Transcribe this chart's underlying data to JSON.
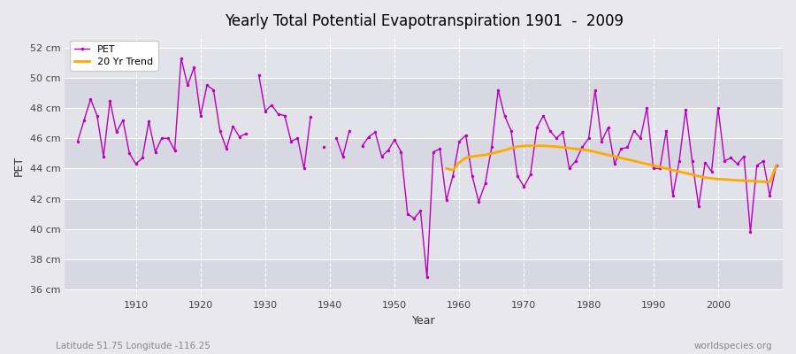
{
  "title": "Yearly Total Potential Evapotranspiration 1901  -  2009",
  "xlabel": "Year",
  "ylabel": "PET",
  "footnote_left": "Latitude 51.75 Longitude -116.25",
  "footnote_right": "worldspecies.org",
  "pet_color": "#bb00bb",
  "trend_color": "#ffaa00",
  "background_color": "#e8e8ee",
  "band_light": "#e0e0e8",
  "band_dark": "#d0d0dc",
  "grid_color": "#ffffff",
  "ylim": [
    35.5,
    52.8
  ],
  "yticks": [
    36,
    38,
    40,
    42,
    44,
    46,
    48,
    50,
    52
  ],
  "ytick_labels": [
    "36 cm",
    "38 cm",
    "40 cm",
    "42 cm",
    "44 cm",
    "46 cm",
    "48 cm",
    "50 cm",
    "52 cm"
  ],
  "xlim": [
    1899,
    2010
  ],
  "xticks": [
    1910,
    1920,
    1930,
    1940,
    1950,
    1960,
    1970,
    1980,
    1990,
    2000
  ],
  "years": [
    1901,
    1902,
    1903,
    1904,
    1905,
    1906,
    1907,
    1908,
    1909,
    1910,
    1911,
    1912,
    1913,
    1914,
    1915,
    1916,
    1917,
    1918,
    1919,
    1920,
    1921,
    1922,
    1923,
    1924,
    1925,
    1926,
    1927,
    1928,
    1929,
    1930,
    1931,
    1932,
    1933,
    1934,
    1935,
    1936,
    1937,
    1938,
    1939,
    1940,
    1941,
    1942,
    1943,
    1944,
    1945,
    1946,
    1947,
    1948,
    1949,
    1950,
    1951,
    1952,
    1953,
    1954,
    1955,
    1956,
    1957,
    1958,
    1959,
    1960,
    1961,
    1962,
    1963,
    1964,
    1965,
    1966,
    1967,
    1968,
    1969,
    1970,
    1971,
    1972,
    1973,
    1974,
    1975,
    1976,
    1977,
    1978,
    1979,
    1980,
    1981,
    1982,
    1983,
    1984,
    1985,
    1986,
    1987,
    1988,
    1989,
    1990,
    1991,
    1992,
    1993,
    1994,
    1995,
    1996,
    1997,
    1998,
    1999,
    2000,
    2001,
    2002,
    2003,
    2004,
    2005,
    2006,
    2007,
    2008,
    2009
  ],
  "pet_values": [
    45.8,
    47.2,
    48.6,
    47.5,
    44.8,
    48.5,
    46.4,
    47.2,
    45.0,
    44.3,
    44.7,
    47.1,
    45.1,
    46.0,
    46.0,
    45.2,
    51.3,
    49.5,
    50.7,
    47.5,
    49.5,
    49.2,
    46.5,
    45.3,
    46.8,
    46.1,
    46.3,
    null,
    50.2,
    47.8,
    48.2,
    47.6,
    47.5,
    45.8,
    46.0,
    44.0,
    47.4,
    null,
    45.4,
    null,
    46.0,
    44.8,
    46.5,
    null,
    45.5,
    46.1,
    46.4,
    44.8,
    45.2,
    45.9,
    45.1,
    41.0,
    40.7,
    41.2,
    36.8,
    45.1,
    45.3,
    41.9,
    43.5,
    45.8,
    46.2,
    43.5,
    41.8,
    43.0,
    45.4,
    49.2,
    47.5,
    46.5,
    43.5,
    42.8,
    43.6,
    46.7,
    47.5,
    46.5,
    46.0,
    46.4,
    44.0,
    44.5,
    45.4,
    46.0,
    49.2,
    45.8,
    46.7,
    44.3,
    45.3,
    45.4,
    46.5,
    46.0,
    48.0,
    44.0,
    44.0,
    46.5,
    42.2,
    44.5,
    47.9,
    44.5,
    41.5,
    44.4,
    43.8,
    48.0,
    44.5,
    44.7,
    44.3,
    44.8,
    39.8,
    44.2,
    44.5,
    42.2,
    44.2
  ],
  "trend_start_year": 1958,
  "trend_values": [
    44.0,
    43.9,
    44.4,
    44.7,
    44.8,
    44.85,
    44.9,
    45.0,
    45.1,
    45.2,
    45.35,
    45.45,
    45.5,
    45.5,
    45.5,
    45.5,
    45.48,
    45.45,
    45.4,
    45.35,
    45.3,
    45.25,
    45.2,
    45.1,
    45.0,
    44.9,
    44.8,
    44.7,
    44.6,
    44.5,
    44.4,
    44.3,
    44.2,
    44.1,
    44.0,
    43.9,
    43.8,
    43.7,
    43.6,
    43.5,
    43.4,
    43.35,
    43.3,
    43.28,
    43.25,
    43.22,
    43.2,
    43.18,
    43.15,
    43.12,
    43.1,
    44.2
  ]
}
